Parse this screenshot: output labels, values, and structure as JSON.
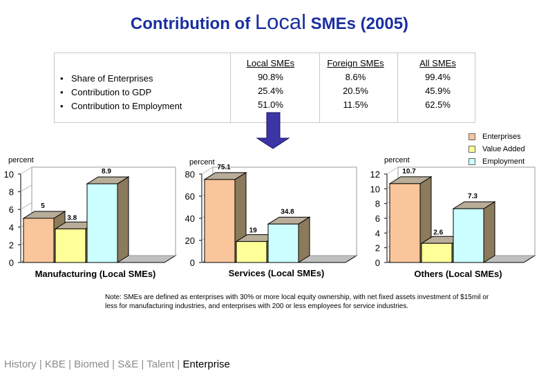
{
  "title": {
    "part1": "Contribution of ",
    "part2": "Local",
    "part3": " SMEs (2005)"
  },
  "table": {
    "rows": [
      "Share of Enterprises",
      "Contribution to GDP",
      "Contribution to Employment"
    ],
    "columns": [
      {
        "header": "Local SMEs",
        "values": [
          "90.8%",
          "25.4%",
          "51.0%"
        ]
      },
      {
        "header": "Foreign SMEs",
        "values": [
          "8.6%",
          "20.5%",
          "11.5%"
        ]
      },
      {
        "header": "All SMEs",
        "values": [
          "99.4%",
          "45.9%",
          "62.5%"
        ]
      }
    ]
  },
  "legend": [
    {
      "label": "Enterprises",
      "color": "#f9c59a"
    },
    {
      "label": "Value Added",
      "color": "#ffff99"
    },
    {
      "label": "Employment",
      "color": "#ccffff"
    }
  ],
  "chart_data": [
    {
      "type": "bar",
      "title": "Manufacturing (Local SMEs)",
      "ylabel": "percent",
      "ylim": [
        0,
        10
      ],
      "yticks": [
        0,
        2,
        4,
        6,
        8,
        10
      ],
      "categories": [
        "Enterprises",
        "Value Added",
        "Employment"
      ],
      "values": [
        5,
        3.8,
        8.9
      ],
      "labels": [
        "5",
        "3.8",
        "8.9"
      ]
    },
    {
      "type": "bar",
      "title": "Services (Local SMEs)",
      "ylabel": "percent",
      "ylim": [
        0,
        80
      ],
      "yticks": [
        0,
        20,
        40,
        60,
        80
      ],
      "categories": [
        "Enterprises",
        "Value Added",
        "Employment"
      ],
      "values": [
        75.1,
        19,
        34.8
      ],
      "labels": [
        "75.1",
        "19",
        "34.8"
      ]
    },
    {
      "type": "bar",
      "title": "Others (Local SMEs)",
      "ylabel": "percent",
      "ylim": [
        0,
        12
      ],
      "yticks": [
        0,
        2,
        4,
        6,
        8,
        10,
        12
      ],
      "categories": [
        "Enterprises",
        "Value Added",
        "Employment"
      ],
      "values": [
        10.7,
        2.6,
        7.3
      ],
      "labels": [
        "10.7",
        "2.6",
        "7.3"
      ]
    }
  ],
  "note": "Note: SMEs are defined as enterprises with 30% or more local equity ownership, with net fixed assets investment of $15mil or less for manufacturing industries, and enterprises with 200 or less employees for service industries.",
  "footer": {
    "links": [
      "History",
      "KBE",
      "Biomed",
      "S&E",
      "Talent"
    ],
    "current": "Enterprise",
    "separator": " | "
  },
  "colors": {
    "title": "#1a2fa0",
    "arrow": "#3b35a6",
    "bar_side": "#8c7a5c",
    "bar_top": "#b8ad98",
    "floor": "#c0c0c0"
  }
}
